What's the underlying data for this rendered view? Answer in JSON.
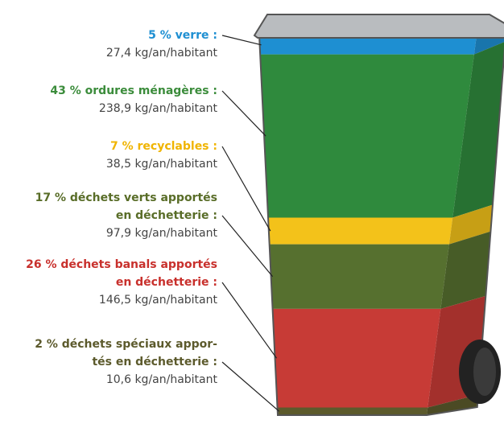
{
  "chart_data": {
    "type": "bin",
    "values": [
      5,
      43,
      7,
      17,
      26,
      2
    ],
    "value_labels": [
      [
        "5 % verre :"
      ],
      [
        "43 % ordures ménagères :"
      ],
      [
        "7 % recyclables :"
      ],
      [
        "17 % déchets verts apportés",
        "en déchetterie :"
      ],
      [
        "26 % déchets banals apportés",
        "en déchetterie :"
      ],
      [
        "2 % déchets spéciaux appor-",
        "tés en déchetterie :"
      ]
    ],
    "amount_labels": [
      "27,4 kg/an/habitant",
      "238,9 kg/an/habitant",
      "38,5 kg/an/habitant",
      "97,9 kg/an/habitant",
      "146,5 kg/an/habitant",
      "10,6 kg/an/habitant"
    ],
    "colors": [
      "#1e8fd2",
      "#2f8a3d",
      "#f3c21a",
      "#56702f",
      "#c73b36",
      "#5c5a2c"
    ],
    "label_colors": [
      "#1e8fd2",
      "#3b8c3b",
      "#f0b400",
      "#596d28",
      "#c8302c",
      "#5c5a2c"
    ]
  }
}
